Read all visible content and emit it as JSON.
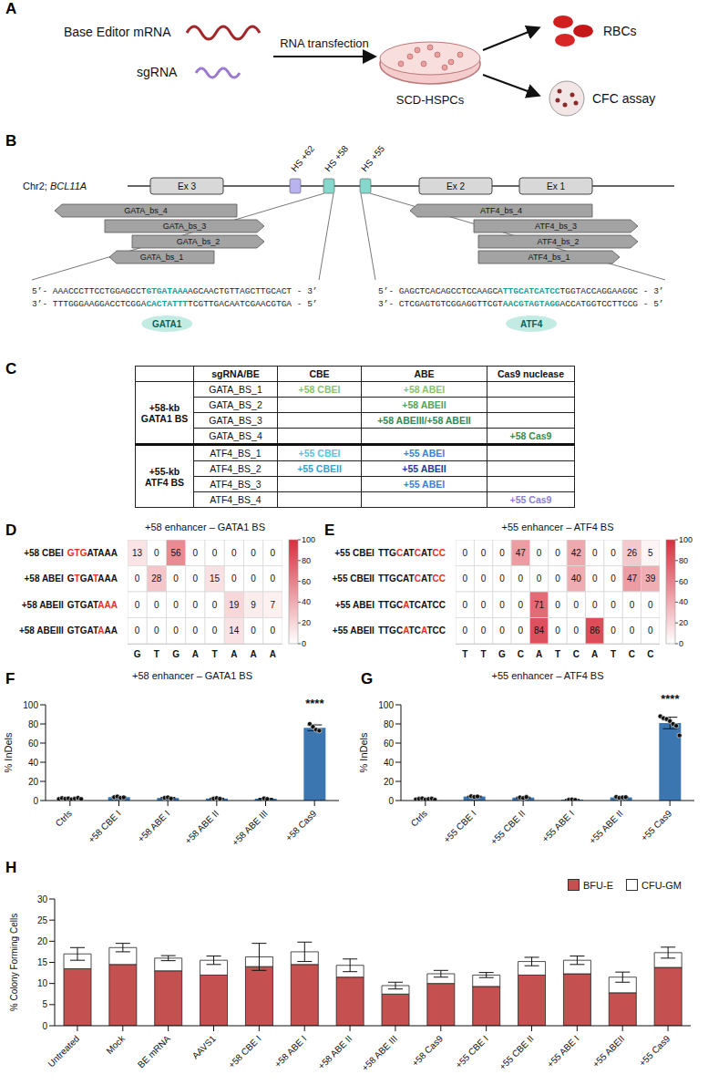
{
  "panel_A": {
    "panel": "A",
    "inputs": [
      "Base Editor mRNA",
      "sgRNA"
    ],
    "step": "RNA transfection",
    "cells": "SCD-HSPCs",
    "outputs": [
      "RBCs",
      "CFC assay"
    ]
  },
  "panel_B": {
    "panel": "B",
    "chromosome": "Chr2;",
    "gene": "BCL11A",
    "exons": [
      "Ex 3",
      "Ex 2",
      "Ex 1"
    ],
    "hypersensitive_sites": [
      {
        "label": "HS +62",
        "color": "#b9b4ef"
      },
      {
        "label": "HS +58",
        "color": "#86d8cc"
      },
      {
        "label": "HS +55",
        "color": "#86d8cc"
      }
    ],
    "zooms": [
      {
        "binding_sites": [
          "GATA_bs_4",
          "GATA_bs_3",
          "GATA_bs_2",
          "GATA_bs_1"
        ],
        "top_strand": "5’- AAACCCTTCCTGGAGCCTGTGATAAAAGCAACTGTTAGCTTGCACT - 3’",
        "top_site": "GTGATAAA",
        "bottom_strand": "3’- TTTGGGAAGGACCTCGGACACTATTTTCGTTGACAATCGAACGTGA - 5’",
        "bottom_site": "CACTATTT",
        "factor": "GATA1"
      },
      {
        "binding_sites": [
          "ATF4_bs_4",
          "ATF4_bs_3",
          "ATF4_bs_2",
          "ATF4_bs_1"
        ],
        "top_strand": "5’- GAGCTCACAGCCTCCAAGCATTGCATCATCCTGGTACCAGGAAGGC - 3’",
        "top_site": "TTGCATCATCC",
        "bottom_strand": "3’- CTCGAGTGTCGGAGGTTCGTAACGTAGTAGGACCATGGTCCTTCCG - 5’",
        "bottom_site": "AACGTAGTAGG",
        "factor": "ATF4"
      }
    ]
  },
  "panel_C": {
    "panel": "C",
    "header": [
      "sgRNA/BE",
      "CBE",
      "ABE",
      "Cas9 nuclease"
    ],
    "groups": [
      {
        "name": "+58-kb GATA1 BS",
        "rows": [
          {
            "sgRNA": "GATA_BS_1",
            "cells": [
              {
                "text": "+58 CBEI",
                "color": "#8cc36a"
              },
              {
                "text": "+58 ABEI",
                "color": "#8cc36a"
              },
              null
            ]
          },
          {
            "sgRNA": "GATA_BS_2",
            "cells": [
              null,
              {
                "text": "+58 ABEII",
                "color": "#55a35a"
              },
              null
            ]
          },
          {
            "sgRNA": "GATA_BS_3",
            "cells": [
              null,
              {
                "text": "+58 ABEIII/+58 ABEII",
                "color": "#2f8a55"
              },
              null
            ]
          },
          {
            "sgRNA": "GATA_BS_4",
            "cells": [
              null,
              null,
              {
                "text": "+58 Cas9",
                "color": "#3b8a4b"
              }
            ]
          }
        ]
      },
      {
        "name": "+55-kb ATF4 BS",
        "rows": [
          {
            "sgRNA": "ATF4_BS_1",
            "cells": [
              {
                "text": "+55 CBEI",
                "color": "#5cc2e2"
              },
              {
                "text": "+55 ABEI",
                "color": "#3f7fd0"
              },
              null
            ]
          },
          {
            "sgRNA": "ATF4_BS_2",
            "cells": [
              {
                "text": "+55 CBEII",
                "color": "#3a9fd0"
              },
              {
                "text": "+55 ABEII",
                "color": "#1f3c99"
              },
              null
            ]
          },
          {
            "sgRNA": "ATF4_BS_3",
            "cells": [
              null,
              {
                "text": "+55 ABEI",
                "color": "#3f7fd0"
              },
              null
            ]
          },
          {
            "sgRNA": "ATF4_BS_4",
            "cells": [
              null,
              null,
              {
                "text": "+55 Cas9",
                "color": "#8a7fd6"
              }
            ]
          }
        ]
      }
    ]
  },
  "chart_data": [
    {
      "panel": "D",
      "type": "heatmap",
      "title": "+58 enhancer – GATA1 BS",
      "data_labels": true,
      "columns": [
        "G",
        "T",
        "G",
        "A",
        "T",
        "A",
        "A",
        "A"
      ],
      "rows": [
        {
          "name": "+58 CBEI",
          "seq": [
            {
              "text": "GTG",
              "edited": true
            },
            {
              "text": "ATAAA",
              "edited": false
            }
          ],
          "values": [
            13,
            0,
            56,
            0,
            0,
            0,
            0,
            0
          ]
        },
        {
          "name": "+58 ABEI",
          "seq": [
            {
              "text": "G",
              "edited": false
            },
            {
              "text": "T",
              "edited": true
            },
            {
              "text": "GA",
              "edited": false
            },
            {
              "text": "T",
              "edited": true
            },
            {
              "text": "AAA",
              "edited": false
            }
          ],
          "values": [
            0,
            28,
            0,
            0,
            15,
            0,
            0,
            0
          ]
        },
        {
          "name": "+58 ABEII",
          "seq": [
            {
              "text": "GTGAT",
              "edited": false
            },
            {
              "text": "AAA",
              "edited": true
            }
          ],
          "values": [
            0,
            0,
            0,
            0,
            0,
            19,
            9,
            7
          ]
        },
        {
          "name": "+58 ABEIII",
          "seq": [
            {
              "text": "GTGAT",
              "edited": false
            },
            {
              "text": "A",
              "edited": true
            },
            {
              "text": "AA",
              "edited": false
            }
          ],
          "values": [
            0,
            0,
            0,
            0,
            0,
            14,
            0,
            0
          ]
        }
      ],
      "colorbar": {
        "range": [
          0,
          100
        ],
        "ticks": [
          0,
          20,
          40,
          60,
          80,
          100
        ]
      }
    },
    {
      "panel": "E",
      "type": "heatmap",
      "title": "+55 enhancer – ATF4 BS",
      "data_labels": true,
      "columns": [
        "T",
        "T",
        "G",
        "C",
        "A",
        "T",
        "C",
        "A",
        "T",
        "C",
        "C"
      ],
      "rows": [
        {
          "name": "+55 CBEI",
          "seq": [
            {
              "text": "TTG",
              "edited": false
            },
            {
              "text": "C",
              "edited": true
            },
            {
              "text": "AT",
              "edited": false
            },
            {
              "text": "C",
              "edited": true
            },
            {
              "text": "AT",
              "edited": false
            },
            {
              "text": "CC",
              "edited": true
            }
          ],
          "values": [
            0,
            0,
            0,
            47,
            0,
            0,
            42,
            0,
            0,
            26,
            5
          ]
        },
        {
          "name": "+55 CBEII",
          "seq": [
            {
              "text": "TTGCAT",
              "edited": false
            },
            {
              "text": "C",
              "edited": true
            },
            {
              "text": "AT",
              "edited": false
            },
            {
              "text": "CC",
              "edited": true
            }
          ],
          "values": [
            0,
            0,
            0,
            0,
            0,
            0,
            40,
            0,
            0,
            47,
            39
          ]
        },
        {
          "name": "+55 ABEI",
          "seq": [
            {
              "text": "TTGC",
              "edited": false
            },
            {
              "text": "A",
              "edited": true
            },
            {
              "text": "TCATCC",
              "edited": false
            }
          ],
          "values": [
            0,
            0,
            0,
            0,
            71,
            0,
            0,
            0,
            0,
            0,
            0
          ]
        },
        {
          "name": "+55 ABEII",
          "seq": [
            {
              "text": "TTGC",
              "edited": false
            },
            {
              "text": "A",
              "edited": true
            },
            {
              "text": "TC",
              "edited": false
            },
            {
              "text": "A",
              "edited": true
            },
            {
              "text": "TCC",
              "edited": false
            }
          ],
          "values": [
            0,
            0,
            0,
            0,
            84,
            0,
            0,
            86,
            0,
            0,
            0
          ]
        }
      ],
      "colorbar": {
        "range": [
          0,
          100
        ],
        "ticks": [
          0,
          20,
          40,
          60,
          80,
          100
        ]
      }
    },
    {
      "panel": "F",
      "type": "bar",
      "title": "+58 enhancer – GATA1 BS",
      "y_label": "% InDels",
      "color": "#3b76b0",
      "categories": [
        "Ctrls",
        "+58 CBE I",
        "+58 ABE I",
        "+58 ABE II",
        "+58 ABE III",
        "+58 Cas9"
      ],
      "values": [
        2.0,
        3.5,
        2.7,
        2.1,
        1.9,
        76
      ],
      "errors": [
        0.5,
        0.6,
        0.6,
        0.4,
        0.4,
        3
      ],
      "points": [
        [
          1.5,
          2.5,
          1.8,
          2.2,
          1.2,
          2.0,
          2.8,
          1.6
        ],
        [
          3.5,
          4.2,
          2.8,
          3.3
        ],
        [
          2.8,
          3.3,
          2.0
        ],
        [
          2.0,
          2.6,
          1.8
        ],
        [
          2.2,
          1.6
        ],
        [
          80,
          77,
          74,
          73
        ]
      ],
      "ylim": [
        0,
        100
      ],
      "yticks": [
        0,
        20,
        40,
        60,
        80,
        100
      ],
      "annotations": [
        {
          "category": "+58 Cas9",
          "text": "****"
        }
      ]
    },
    {
      "panel": "G",
      "type": "bar",
      "title": "+55 enhancer – ATF4 BS",
      "y_label": "% InDels",
      "color": "#3b76b0",
      "categories": [
        "Ctrls",
        "+55 CBE I",
        "+55 CBE II",
        "+55 ABE I",
        "+55 ABE II",
        "+55 Cas9"
      ],
      "values": [
        1.5,
        4.2,
        3.1,
        0.9,
        3.3,
        81
      ],
      "errors": [
        0.5,
        0.4,
        0.5,
        0.3,
        0.5,
        6
      ],
      "points": [
        [
          1.2,
          1.8,
          2.2,
          1.0,
          1.5,
          2.0,
          0.8
        ],
        [
          4.5,
          3.8,
          4.2
        ],
        [
          3.2,
          2.6,
          3.6
        ],
        [
          0.8,
          1.2,
          0.6
        ],
        [
          3.8,
          2.8,
          3.2,
          3.5
        ],
        [
          88,
          86,
          85,
          83,
          80,
          78,
          68
        ]
      ],
      "ylim": [
        0,
        100
      ],
      "yticks": [
        0,
        20,
        40,
        60,
        80,
        100
      ],
      "annotations": [
        {
          "category": "+55 Cas9",
          "text": "****"
        }
      ]
    },
    {
      "panel": "H",
      "type": "bar",
      "stacked": true,
      "y_label": "% Colony Forming Cells",
      "legend": "top right",
      "categories": [
        "Untreated",
        "Mock",
        "BE mRNA",
        "AAVS1",
        "+58 CBE I",
        "+58 ABE I",
        "+58 ABE II",
        "+58 ABE III",
        "+58 Cas9",
        "+55 CBE I",
        "+55 CBE II",
        "+55 ABE I",
        "+55 ABEII",
        "+55 Cas9"
      ],
      "series": [
        {
          "name": "BFU-E",
          "color": "#c4504f",
          "values": [
            13.5,
            14.5,
            13.0,
            12.0,
            14.0,
            14.5,
            11.5,
            7.5,
            10.0,
            9.3,
            12.0,
            12.3,
            7.8,
            13.8
          ]
        },
        {
          "name": "CFU-GM",
          "color": "#ffffff",
          "values": [
            3.5,
            4.0,
            3.0,
            3.5,
            2.3,
            3.0,
            2.8,
            2.0,
            2.3,
            2.7,
            3.2,
            3.2,
            3.7,
            3.5
          ],
          "errors": [
            1.5,
            1.0,
            0.6,
            1.0,
            3.2,
            2.3,
            1.5,
            0.8,
            0.8,
            0.6,
            1.0,
            1.0,
            1.2,
            1.3
          ]
        }
      ],
      "ylim": [
        0,
        30
      ],
      "yticks": [
        0,
        5,
        10,
        15,
        20,
        25,
        30
      ]
    }
  ]
}
